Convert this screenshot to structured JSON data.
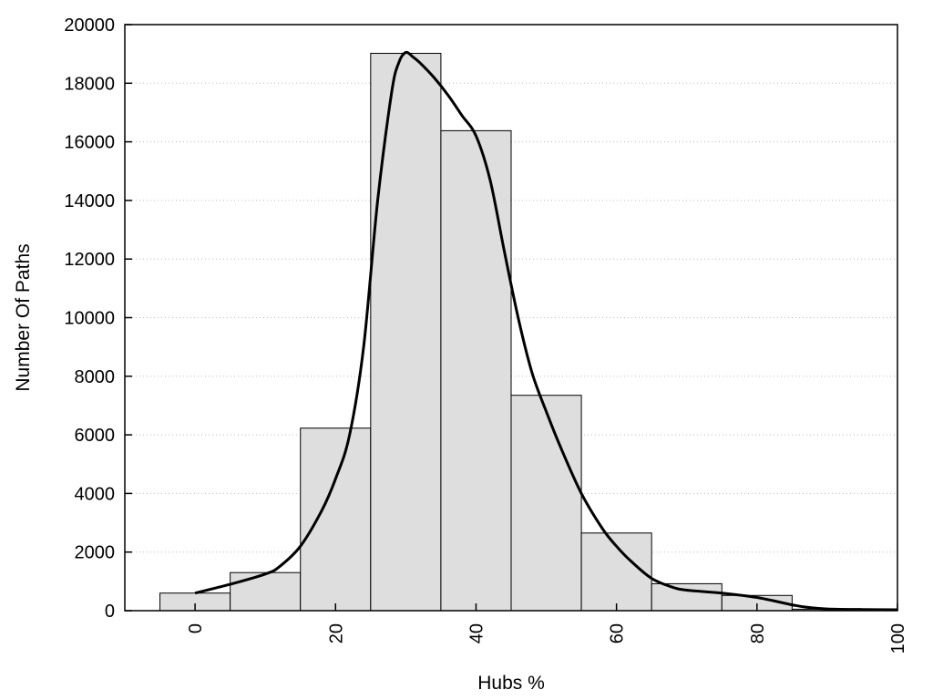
{
  "chart_data": {
    "type": "bar",
    "title": "",
    "xlabel": "Hubs %",
    "ylabel": "Number Of Paths",
    "xlim": [
      -10,
      100
    ],
    "ylim": [
      0,
      20000
    ],
    "grid": true,
    "legend": "none",
    "x_ticks": [
      0,
      20,
      40,
      60,
      80,
      100
    ],
    "y_ticks": [
      0,
      2000,
      4000,
      6000,
      8000,
      10000,
      12000,
      14000,
      16000,
      18000,
      20000
    ],
    "bins": [
      {
        "start": -5,
        "end": 5,
        "value": 600
      },
      {
        "start": 5,
        "end": 15,
        "value": 1300
      },
      {
        "start": 15,
        "end": 25,
        "value": 6230
      },
      {
        "start": 25,
        "end": 35,
        "value": 19020
      },
      {
        "start": 35,
        "end": 45,
        "value": 16380
      },
      {
        "start": 45,
        "end": 55,
        "value": 7350
      },
      {
        "start": 55,
        "end": 65,
        "value": 2650
      },
      {
        "start": 65,
        "end": 75,
        "value": 920
      },
      {
        "start": 75,
        "end": 85,
        "value": 520
      },
      {
        "start": 85,
        "end": 95,
        "value": 50
      },
      {
        "start": 95,
        "end": 105,
        "value": 20
      }
    ],
    "density_curve": {
      "x": [
        0,
        5,
        10,
        12,
        15,
        18,
        20,
        22,
        24,
        26,
        28,
        29,
        30,
        31,
        32,
        34,
        36,
        38,
        40,
        42,
        44,
        46,
        48,
        50,
        52,
        55,
        58,
        60,
        62,
        65,
        68,
        70,
        75,
        80,
        85,
        87,
        90,
        95,
        100
      ],
      "y": [
        600,
        900,
        1250,
        1500,
        2200,
        3400,
        4500,
        6000,
        9000,
        14000,
        17700,
        18700,
        19050,
        18900,
        18700,
        18200,
        17600,
        16900,
        16200,
        14700,
        12300,
        10000,
        8100,
        6800,
        5600,
        4000,
        2800,
        2200,
        1700,
        1100,
        800,
        700,
        600,
        450,
        200,
        120,
        60,
        40,
        30
      ]
    },
    "colors": {
      "bar_fill": "#dedede",
      "bar_stroke": "#000000",
      "curve": "#000000",
      "grid": "#bbbbbb"
    }
  }
}
